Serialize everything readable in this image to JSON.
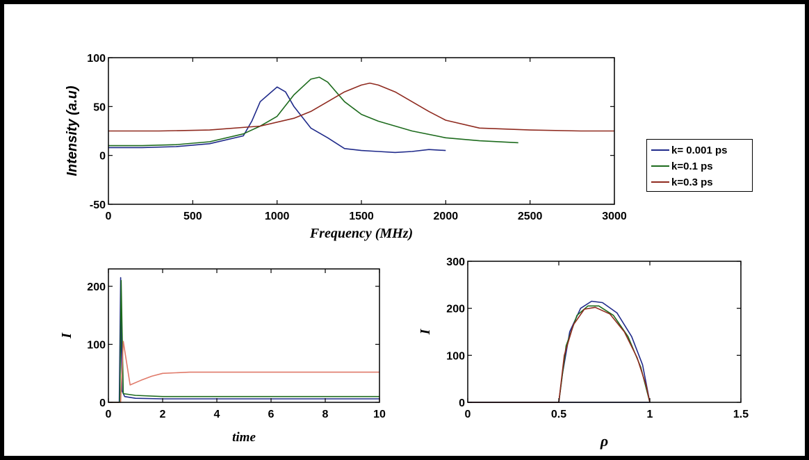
{
  "chart_data": [
    {
      "type": "line",
      "xlabel": "Frequency (MHz)",
      "ylabel": "Intensity (a.u)",
      "xlim": [
        0,
        3000
      ],
      "ylim": [
        -50,
        100
      ],
      "xticks": [
        "0",
        "500",
        "1000",
        "1500",
        "2000",
        "2500",
        "3000"
      ],
      "yticks": [
        "-50",
        "0",
        "50",
        "100"
      ],
      "legend_position": "right",
      "series": [
        {
          "name": "k= 0.001 ps",
          "color": "#1f2a8a",
          "x": [
            0,
            200,
            400,
            600,
            800,
            850,
            900,
            1000,
            1050,
            1100,
            1200,
            1300,
            1400,
            1500,
            1600,
            1700,
            1800,
            1900,
            2000
          ],
          "y": [
            8,
            8,
            9,
            12,
            20,
            35,
            55,
            70,
            65,
            50,
            28,
            18,
            7,
            5,
            4,
            3,
            4,
            6,
            5
          ]
        },
        {
          "name": "k=0.1 ps",
          "color": "#1d6b1d",
          "x": [
            0,
            200,
            400,
            600,
            800,
            900,
            1000,
            1100,
            1200,
            1250,
            1300,
            1400,
            1500,
            1600,
            1800,
            2000,
            2200,
            2430
          ],
          "y": [
            10,
            10,
            11,
            14,
            22,
            30,
            40,
            62,
            78,
            80,
            75,
            55,
            42,
            35,
            25,
            18,
            15,
            13
          ]
        },
        {
          "name": "k=0.3 ps",
          "color": "#8f2a1f",
          "x": [
            0,
            300,
            600,
            900,
            1100,
            1200,
            1300,
            1400,
            1500,
            1550,
            1600,
            1700,
            1800,
            1900,
            2000,
            2200,
            2500,
            2800,
            3000
          ],
          "y": [
            25,
            25,
            26,
            30,
            38,
            45,
            55,
            65,
            72,
            74,
            72,
            65,
            55,
            45,
            36,
            28,
            26,
            25,
            25
          ]
        }
      ]
    },
    {
      "type": "line",
      "xlabel": "time",
      "ylabel": "I",
      "xlim": [
        0,
        10
      ],
      "ylim": [
        0,
        230
      ],
      "xticks": [
        "0",
        "2",
        "4",
        "6",
        "8",
        "10"
      ],
      "yticks": [
        "0",
        "100",
        "200"
      ],
      "series": [
        {
          "color": "#1f2a8a",
          "x": [
            0,
            0.4,
            0.45,
            0.5,
            0.6,
            1,
            2,
            5,
            10
          ],
          "y": [
            0,
            0,
            215,
            20,
            10,
            7,
            6,
            6,
            6
          ]
        },
        {
          "color": "#1d6b1d",
          "x": [
            0,
            0.42,
            0.47,
            0.55,
            1,
            2,
            4,
            10
          ],
          "y": [
            0,
            0,
            210,
            15,
            12,
            10,
            10,
            10
          ]
        },
        {
          "color": "#e07a6a",
          "x": [
            0,
            0.45,
            0.55,
            0.8,
            1.2,
            1.6,
            2,
            3,
            10
          ],
          "y": [
            0,
            0,
            105,
            30,
            38,
            45,
            50,
            52,
            52
          ]
        }
      ]
    },
    {
      "type": "line",
      "xlabel": "ρ",
      "ylabel": "I",
      "xlim": [
        0,
        1.5
      ],
      "ylim": [
        0,
        300
      ],
      "xticks": [
        "0",
        "0.5",
        "1",
        "1.5"
      ],
      "yticks": [
        "0",
        "100",
        "200",
        "300"
      ],
      "series": [
        {
          "color": "#1f2a8a",
          "x": [
            0,
            0.5,
            0.52,
            0.56,
            0.62,
            0.68,
            0.74,
            0.82,
            0.9,
            0.96,
            1.0,
            0.75,
            0.5
          ],
          "y": [
            0,
            0,
            60,
            150,
            200,
            215,
            212,
            190,
            140,
            80,
            0,
            0,
            0
          ]
        },
        {
          "color": "#1d6b1d",
          "x": [
            0.5,
            0.54,
            0.6,
            0.66,
            0.72,
            0.8,
            0.88,
            0.95,
            1.0
          ],
          "y": [
            0,
            120,
            185,
            205,
            205,
            185,
            140,
            75,
            0
          ]
        },
        {
          "color": "#8f2a1f",
          "x": [
            0,
            0.5,
            0.53,
            0.58,
            0.64,
            0.7,
            0.78,
            0.86,
            0.93,
            0.98,
            1.0
          ],
          "y": [
            0,
            0,
            100,
            165,
            198,
            202,
            188,
            150,
            95,
            35,
            0
          ]
        }
      ]
    }
  ]
}
